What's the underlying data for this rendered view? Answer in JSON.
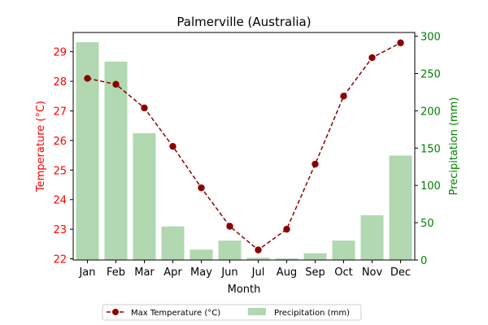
{
  "chart_data": {
    "type": "bar+line",
    "title": "Palmerville (Australia)",
    "xlabel": "Month",
    "ylabel_left": "Temperature (°C)",
    "ylabel_right": "Precipitation (mm)",
    "categories": [
      "Jan",
      "Feb",
      "Mar",
      "Apr",
      "May",
      "Jun",
      "Jul",
      "Aug",
      "Sep",
      "Oct",
      "Nov",
      "Dec"
    ],
    "series": [
      {
        "name": "Max Temperature (°C)",
        "type": "line",
        "axis": "left",
        "values": [
          28.1,
          27.9,
          27.1,
          25.8,
          24.4,
          23.1,
          22.3,
          23.0,
          25.2,
          27.5,
          28.8,
          29.3
        ]
      },
      {
        "name": "Precipitation (mm)",
        "type": "bar",
        "axis": "right",
        "values": [
          292,
          266,
          170,
          45,
          14,
          26,
          3,
          2,
          9,
          26,
          60,
          140
        ]
      }
    ],
    "ylim_left": [
      21.96,
      29.65
    ],
    "ylim_right": [
      0,
      305
    ],
    "yticks_left": [
      22,
      23,
      24,
      25,
      26,
      27,
      28,
      29
    ],
    "yticks_right": [
      0,
      50,
      100,
      150,
      200,
      250,
      300
    ],
    "grid": false,
    "legend": "bottom-center",
    "colors": {
      "line": "#8b0000",
      "bar": "#b1d8b1",
      "left_axis": "#ff0000",
      "right_axis": "#008000",
      "frame": "#000000"
    }
  }
}
